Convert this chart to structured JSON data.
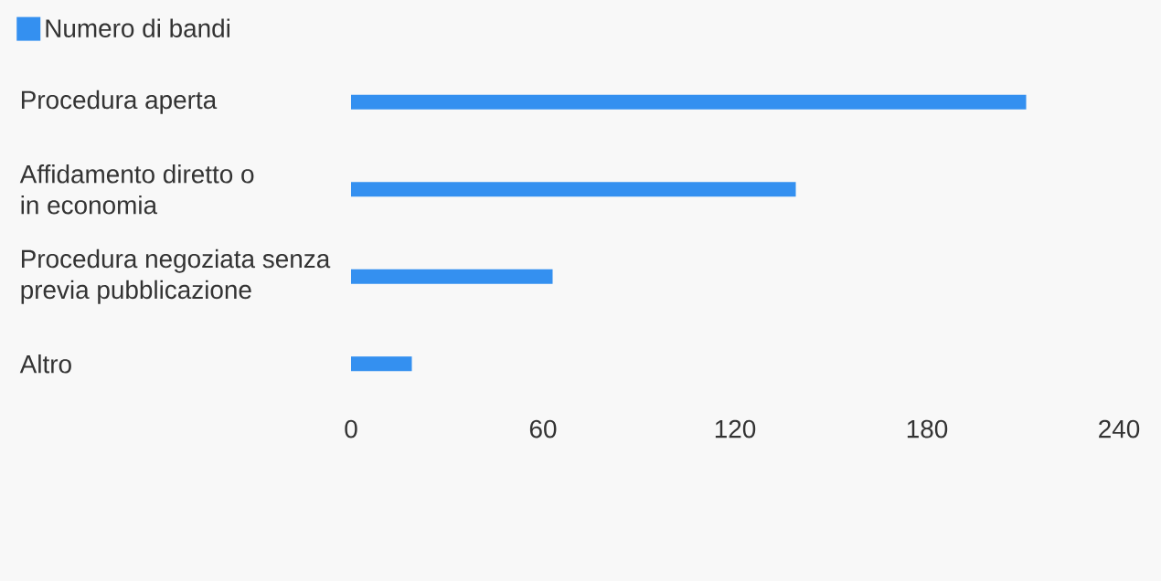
{
  "chart_data": {
    "type": "bar",
    "orientation": "horizontal",
    "categories": [
      "Procedura aperta",
      "Affidamento diretto o in economia",
      "Procedura negoziata senza previa pubblicazione",
      "Altro"
    ],
    "series": [
      {
        "name": "Numero di bandi",
        "color": "#3490f0",
        "values": [
          211,
          139,
          63,
          19
        ]
      }
    ],
    "xlim": [
      0,
      240
    ],
    "xticks": [
      0,
      60,
      120,
      180,
      240
    ],
    "grid": false,
    "legend": "top left",
    "tick_labels": "xy"
  }
}
